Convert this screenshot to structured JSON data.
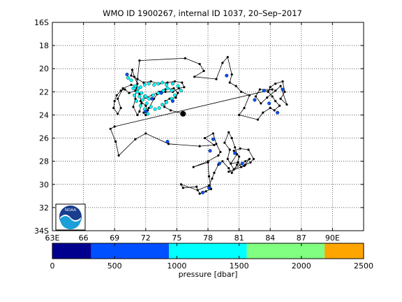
{
  "chart_data": {
    "type": "scatter",
    "title": "WMO ID 1900267, internal ID 1037, 20–Sep–2017",
    "map": {
      "lon_range": [
        63,
        93
      ],
      "lat_range": [
        -34,
        -16
      ],
      "x_ticks": [
        63,
        66,
        69,
        72,
        75,
        78,
        81,
        84,
        87,
        90
      ],
      "x_tick_labels": [
        "63E",
        "66",
        "69",
        "72",
        "75",
        "78",
        "81",
        "84",
        "87",
        "90E"
      ],
      "y_ticks": [
        -16,
        -18,
        -20,
        -22,
        -24,
        -26,
        -28,
        -30,
        -32,
        -34
      ],
      "y_tick_labels": [
        "16S",
        "18",
        "20",
        "22",
        "24",
        "26",
        "28",
        "30",
        "32",
        "34S"
      ],
      "grid": true,
      "grid_style": "dotted"
    },
    "track": {
      "line_color": "#000000",
      "points": [
        [
          75.6,
          -23.9
        ],
        [
          74.4,
          -23.6
        ],
        [
          73.8,
          -23.3
        ],
        [
          73.9,
          -22.8
        ],
        [
          74.3,
          -22.6
        ],
        [
          74.9,
          -22.5
        ],
        [
          75.1,
          -22.1
        ],
        [
          74.7,
          -21.7
        ],
        [
          73.9,
          -21.8
        ],
        [
          73.3,
          -22.0
        ],
        [
          72.6,
          -22.3
        ],
        [
          72.0,
          -22.5
        ],
        [
          71.5,
          -22.8
        ],
        [
          72.0,
          -23.2
        ],
        [
          72.2,
          -23.6
        ],
        [
          71.8,
          -23.8
        ],
        [
          72.0,
          -24.0
        ],
        [
          72.3,
          -23.4
        ],
        [
          72.8,
          -22.6
        ],
        [
          73.1,
          -22.2
        ],
        [
          73.9,
          -22.0
        ],
        [
          74.6,
          -22.0
        ],
        [
          75.2,
          -21.7
        ],
        [
          75.7,
          -21.6
        ],
        [
          75.5,
          -21.2
        ],
        [
          74.8,
          -21.1
        ],
        [
          74.1,
          -21.2
        ],
        [
          73.3,
          -21.3
        ],
        [
          72.5,
          -21.1
        ],
        [
          71.8,
          -21.2
        ],
        [
          71.2,
          -20.9
        ],
        [
          70.6,
          -20.6
        ],
        [
          70.7,
          -20.1
        ],
        [
          70.9,
          -20.7
        ],
        [
          71.2,
          -21.3
        ],
        [
          71.0,
          -21.9
        ],
        [
          70.4,
          -22.1
        ],
        [
          70.0,
          -21.8
        ],
        [
          69.6,
          -21.9
        ],
        [
          69.2,
          -22.3
        ],
        [
          69.0,
          -22.8
        ],
        [
          68.9,
          -23.4
        ],
        [
          69.3,
          -23.9
        ],
        [
          69.6,
          -23.4
        ],
        [
          69.3,
          -22.6
        ],
        [
          69.8,
          -21.7
        ],
        [
          70.6,
          -21.4
        ],
        [
          71.1,
          -21.5
        ],
        [
          71.4,
          -22.2
        ],
        [
          71.6,
          -23.0
        ],
        [
          71.4,
          -23.7
        ],
        [
          71.2,
          -24.0
        ],
        [
          70.8,
          -23.3
        ],
        [
          71.0,
          -22.6
        ],
        [
          71.4,
          -19.3
        ],
        [
          75.8,
          -19.1
        ],
        [
          77.2,
          -19.6
        ],
        [
          77.6,
          -20.2
        ],
        [
          76.7,
          -20.7
        ],
        [
          78.8,
          -20.9
        ],
        [
          79.4,
          -19.5
        ],
        [
          79.9,
          -19.0
        ],
        [
          80.3,
          -20.5
        ],
        [
          80.1,
          -21.2
        ],
        [
          80.7,
          -21.5
        ],
        [
          81.2,
          -22.0
        ],
        [
          82.0,
          -22.3
        ],
        [
          81.5,
          -23.4
        ],
        [
          81.0,
          -24.0
        ],
        [
          82.8,
          -24.4
        ],
        [
          83.3,
          -23.8
        ],
        [
          84.0,
          -23.4
        ],
        [
          84.4,
          -23.6
        ],
        [
          84.9,
          -23.2
        ],
        [
          84.5,
          -22.8
        ],
        [
          84.2,
          -22.4
        ],
        [
          83.8,
          -22.0
        ],
        [
          84.0,
          -21.6
        ],
        [
          84.5,
          -21.3
        ],
        [
          85.2,
          -21.1
        ],
        [
          85.4,
          -22.0
        ],
        [
          85.0,
          -22.6
        ],
        [
          85.6,
          -23.1
        ],
        [
          85.0,
          -21.5
        ],
        [
          84.5,
          -21.9
        ],
        [
          83.7,
          -22.5
        ],
        [
          83.1,
          -23.0
        ],
        [
          82.6,
          -22.4
        ],
        [
          83.0,
          -21.8
        ],
        [
          84.2,
          -21.8
        ],
        [
          69.0,
          -25.0
        ],
        [
          68.6,
          -25.2
        ],
        [
          69.1,
          -26.3
        ],
        [
          69.4,
          -27.5
        ],
        [
          71.0,
          -26.1
        ],
        [
          72.0,
          -25.6
        ],
        [
          74.2,
          -26.5
        ],
        [
          77.2,
          -26.7
        ],
        [
          78.6,
          -26.6
        ],
        [
          77.7,
          -26.0
        ],
        [
          78.5,
          -25.6
        ],
        [
          78.8,
          -26.5
        ],
        [
          79.2,
          -27.2
        ],
        [
          79.0,
          -27.5
        ],
        [
          78.0,
          -28.0
        ],
        [
          76.6,
          -28.5
        ],
        [
          78.0,
          -28.1
        ],
        [
          78.1,
          -29.3
        ],
        [
          78.3,
          -30.4
        ],
        [
          77.8,
          -30.6
        ],
        [
          77.2,
          -30.8
        ],
        [
          76.9,
          -30.2
        ],
        [
          75.6,
          -30.3
        ],
        [
          75.4,
          -30.0
        ],
        [
          77.0,
          -30.5
        ],
        [
          78.1,
          -30.1
        ],
        [
          78.4,
          -29.5
        ],
        [
          78.6,
          -29.0
        ],
        [
          79.0,
          -28.3
        ],
        [
          79.4,
          -28.0
        ],
        [
          80.0,
          -28.6
        ],
        [
          80.3,
          -29.0
        ],
        [
          80.8,
          -28.3
        ],
        [
          81.0,
          -27.6
        ],
        [
          80.5,
          -27.1
        ],
        [
          81.1,
          -26.9
        ],
        [
          81.9,
          -27.0
        ],
        [
          82.4,
          -27.8
        ],
        [
          82.1,
          -28.1
        ],
        [
          81.6,
          -28.3
        ],
        [
          81.2,
          -28.5
        ],
        [
          80.9,
          -28.1
        ],
        [
          80.2,
          -28.2
        ],
        [
          80.8,
          -27.4
        ],
        [
          80.6,
          -26.8
        ],
        [
          80.3,
          -26.0
        ],
        [
          80.0,
          -25.5
        ],
        [
          79.6,
          -26.4
        ],
        [
          80.1,
          -27.0
        ],
        [
          79.9,
          -27.8
        ],
        [
          80.5,
          -28.7
        ],
        [
          81.6,
          -28.0
        ],
        [
          82.0,
          -27.8
        ],
        [
          81.5,
          -28.4
        ],
        [
          80.0,
          -28.9
        ]
      ],
      "cyan_points": [
        [
          70.3,
          -20.8
        ],
        [
          70.6,
          -21.0
        ],
        [
          71.0,
          -21.5
        ],
        [
          71.3,
          -21.7
        ],
        [
          71.6,
          -22.1
        ],
        [
          71.9,
          -22.4
        ],
        [
          72.3,
          -22.6
        ],
        [
          72.7,
          -22.3
        ],
        [
          73.2,
          -22.1
        ],
        [
          73.7,
          -21.9
        ],
        [
          74.1,
          -21.7
        ],
        [
          74.5,
          -21.9
        ],
        [
          74.8,
          -22.3
        ],
        [
          74.5,
          -22.6
        ],
        [
          74.0,
          -22.9
        ],
        [
          73.6,
          -23.1
        ],
        [
          73.3,
          -23.4
        ],
        [
          72.9,
          -23.5
        ],
        [
          72.5,
          -23.3
        ],
        [
          72.1,
          -23.0
        ],
        [
          71.7,
          -22.7
        ],
        [
          71.4,
          -22.4
        ],
        [
          71.2,
          -22.0
        ],
        [
          71.5,
          -21.6
        ],
        [
          71.9,
          -21.4
        ],
        [
          72.3,
          -21.3
        ],
        [
          72.8,
          -21.4
        ],
        [
          73.2,
          -21.3
        ],
        [
          73.6,
          -21.2
        ],
        [
          74.0,
          -21.4
        ],
        [
          74.6,
          -21.3
        ],
        [
          75.1,
          -21.5
        ],
        [
          75.4,
          -21.9
        ],
        [
          70.9,
          -22.3
        ],
        [
          71.1,
          -22.8
        ],
        [
          71.5,
          -23.2
        ],
        [
          71.9,
          -23.5
        ],
        [
          72.2,
          -23.9
        ],
        [
          72.0,
          -22.4
        ],
        [
          70.8,
          -21.7
        ]
      ],
      "blue_points": [
        [
          70.2,
          -20.5
        ],
        [
          72.6,
          -22.6
        ],
        [
          73.5,
          -22.1
        ],
        [
          74.6,
          -22.8
        ],
        [
          72.0,
          -23.7
        ],
        [
          79.8,
          -20.6
        ],
        [
          82.5,
          -22.7
        ],
        [
          83.4,
          -21.9
        ],
        [
          84.7,
          -23.8
        ],
        [
          85.2,
          -21.8
        ],
        [
          83.9,
          -23.0
        ],
        [
          74.1,
          -26.3
        ],
        [
          78.5,
          -26.1
        ],
        [
          78.2,
          -27.1
        ],
        [
          79.1,
          -28.2
        ],
        [
          78.1,
          -30.3
        ],
        [
          77.5,
          -30.7
        ],
        [
          80.6,
          -27.3
        ],
        [
          81.3,
          -28.2
        ]
      ],
      "start_point": [
        75.6,
        -23.9
      ]
    },
    "colorbar": {
      "label": "pressure [dbar]",
      "ticks": [
        "0",
        "500",
        "1000",
        "1500",
        "2000",
        "2500"
      ],
      "range": [
        0,
        2500
      ],
      "bands": [
        {
          "from": 0,
          "to": 312,
          "color": "#00008f"
        },
        {
          "from": 312,
          "to": 937,
          "color": "#0050ff"
        },
        {
          "from": 937,
          "to": 1562,
          "color": "#00ffff"
        },
        {
          "from": 1562,
          "to": 2187,
          "color": "#80ff80"
        },
        {
          "from": 2187,
          "to": 2500,
          "color": "#ffa500"
        }
      ]
    },
    "logo": {
      "text": "NOAA"
    }
  }
}
